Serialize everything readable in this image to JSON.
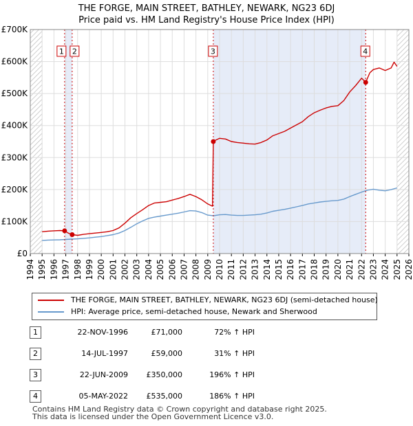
{
  "chart_data": {
    "type": "line",
    "title": "THE FORGE, MAIN STREET, BATHLEY, NEWARK, NG23 6DJ",
    "subtitle": "Price paid vs. HM Land Registry's House Price Index (HPI)",
    "xlim": [
      1994,
      2026
    ],
    "ylim": [
      0,
      700000
    ],
    "x_ticks": [
      "1994",
      "1995",
      "1996",
      "1997",
      "1998",
      "1999",
      "2000",
      "2001",
      "2002",
      "2003",
      "2004",
      "2005",
      "2006",
      "2007",
      "2008",
      "2009",
      "2010",
      "2011",
      "2012",
      "2013",
      "2014",
      "2015",
      "2016",
      "2017",
      "2018",
      "2019",
      "2020",
      "2021",
      "2022",
      "2023",
      "2024",
      "2025",
      "2026"
    ],
    "y_ticks": [
      {
        "value": 0,
        "label": "£0"
      },
      {
        "value": 100000,
        "label": "£100K"
      },
      {
        "value": 200000,
        "label": "£200K"
      },
      {
        "value": 300000,
        "label": "£300K"
      },
      {
        "value": 400000,
        "label": "£400K"
      },
      {
        "value": 500000,
        "label": "£500K"
      },
      {
        "value": 600000,
        "label": "£600K"
      },
      {
        "value": 700000,
        "label": "£700K"
      }
    ],
    "hatched_ranges": [
      [
        1994.0,
        1995.0
      ],
      [
        2025.0,
        2026.0
      ]
    ],
    "sold_ranges": [
      [
        1996.9,
        1997.55
      ],
      [
        2009.47,
        2022.35
      ]
    ],
    "series": [
      {
        "name": "THE FORGE, MAIN STREET, BATHLEY, NEWARK, NG23 6DJ (semi-detached house)",
        "color": "#cc0000",
        "points": [
          [
            1995.0,
            68000
          ],
          [
            1995.5,
            70000
          ],
          [
            1996.0,
            71000
          ],
          [
            1996.5,
            72000
          ],
          [
            1996.9,
            71000
          ],
          [
            1997.2,
            64000
          ],
          [
            1997.54,
            59000
          ],
          [
            1998.0,
            57000
          ],
          [
            1998.5,
            60000
          ],
          [
            1999.0,
            62000
          ],
          [
            1999.5,
            64000
          ],
          [
            2000.0,
            66000
          ],
          [
            2000.5,
            68000
          ],
          [
            2001.0,
            72000
          ],
          [
            2001.5,
            80000
          ],
          [
            2002.0,
            95000
          ],
          [
            2002.5,
            112000
          ],
          [
            2003.0,
            125000
          ],
          [
            2003.5,
            137000
          ],
          [
            2004.0,
            150000
          ],
          [
            2004.5,
            158000
          ],
          [
            2005.0,
            160000
          ],
          [
            2005.5,
            162000
          ],
          [
            2006.0,
            167000
          ],
          [
            2006.5,
            172000
          ],
          [
            2007.0,
            178000
          ],
          [
            2007.5,
            185000
          ],
          [
            2008.0,
            178000
          ],
          [
            2008.5,
            168000
          ],
          [
            2009.0,
            155000
          ],
          [
            2009.4,
            148000
          ],
          [
            2009.47,
            350000
          ],
          [
            2009.7,
            355000
          ],
          [
            2010.0,
            360000
          ],
          [
            2010.5,
            358000
          ],
          [
            2011.0,
            350000
          ],
          [
            2011.5,
            347000
          ],
          [
            2012.0,
            345000
          ],
          [
            2012.5,
            343000
          ],
          [
            2013.0,
            342000
          ],
          [
            2013.5,
            347000
          ],
          [
            2014.0,
            355000
          ],
          [
            2014.5,
            368000
          ],
          [
            2015.0,
            375000
          ],
          [
            2015.5,
            382000
          ],
          [
            2016.0,
            392000
          ],
          [
            2016.5,
            402000
          ],
          [
            2017.0,
            412000
          ],
          [
            2017.5,
            428000
          ],
          [
            2018.0,
            440000
          ],
          [
            2018.5,
            448000
          ],
          [
            2019.0,
            455000
          ],
          [
            2019.5,
            460000
          ],
          [
            2020.0,
            462000
          ],
          [
            2020.5,
            478000
          ],
          [
            2021.0,
            505000
          ],
          [
            2021.5,
            525000
          ],
          [
            2022.0,
            548000
          ],
          [
            2022.35,
            535000
          ],
          [
            2022.7,
            565000
          ],
          [
            2023.0,
            575000
          ],
          [
            2023.5,
            580000
          ],
          [
            2024.0,
            572000
          ],
          [
            2024.5,
            580000
          ],
          [
            2024.75,
            598000
          ],
          [
            2025.0,
            585000
          ]
        ]
      },
      {
        "name": "HPI: Average price, semi-detached house, Newark and Sherwood",
        "color": "#6699cc",
        "points": [
          [
            1995.0,
            41000
          ],
          [
            1995.5,
            42000
          ],
          [
            1996.0,
            42500
          ],
          [
            1996.5,
            43000
          ],
          [
            1997.0,
            44000
          ],
          [
            1997.5,
            45000
          ],
          [
            1998.0,
            46000
          ],
          [
            1998.5,
            47500
          ],
          [
            1999.0,
            49000
          ],
          [
            1999.5,
            51000
          ],
          [
            2000.0,
            53000
          ],
          [
            2000.5,
            56000
          ],
          [
            2001.0,
            59000
          ],
          [
            2001.5,
            64000
          ],
          [
            2002.0,
            72000
          ],
          [
            2002.5,
            82000
          ],
          [
            2003.0,
            93000
          ],
          [
            2003.5,
            102000
          ],
          [
            2004.0,
            110000
          ],
          [
            2004.5,
            114000
          ],
          [
            2005.0,
            117000
          ],
          [
            2005.5,
            120000
          ],
          [
            2006.0,
            123000
          ],
          [
            2006.5,
            126000
          ],
          [
            2007.0,
            130000
          ],
          [
            2007.5,
            134000
          ],
          [
            2008.0,
            133000
          ],
          [
            2008.5,
            128000
          ],
          [
            2009.0,
            120000
          ],
          [
            2009.5,
            118000
          ],
          [
            2010.0,
            121000
          ],
          [
            2010.5,
            122000
          ],
          [
            2011.0,
            120000
          ],
          [
            2011.5,
            119000
          ],
          [
            2012.0,
            119000
          ],
          [
            2012.5,
            120000
          ],
          [
            2013.0,
            121000
          ],
          [
            2013.5,
            123000
          ],
          [
            2014.0,
            127000
          ],
          [
            2014.5,
            132000
          ],
          [
            2015.0,
            135000
          ],
          [
            2015.5,
            138000
          ],
          [
            2016.0,
            142000
          ],
          [
            2016.5,
            146000
          ],
          [
            2017.0,
            150000
          ],
          [
            2017.5,
            155000
          ],
          [
            2018.0,
            158000
          ],
          [
            2018.5,
            161000
          ],
          [
            2019.0,
            163000
          ],
          [
            2019.5,
            165000
          ],
          [
            2020.0,
            166000
          ],
          [
            2020.5,
            170000
          ],
          [
            2021.0,
            178000
          ],
          [
            2021.5,
            185000
          ],
          [
            2022.0,
            192000
          ],
          [
            2022.5,
            198000
          ],
          [
            2023.0,
            201000
          ],
          [
            2023.5,
            198000
          ],
          [
            2024.0,
            196000
          ],
          [
            2024.5,
            200000
          ],
          [
            2025.0,
            205000
          ]
        ]
      }
    ],
    "sales": [
      {
        "num": "1",
        "x": 1996.9,
        "price": 71000
      },
      {
        "num": "2",
        "x": 1997.54,
        "price": 59000
      },
      {
        "num": "3",
        "x": 2009.47,
        "price": 350000
      },
      {
        "num": "4",
        "x": 2022.35,
        "price": 535000
      }
    ]
  },
  "legend": {
    "property_label": "THE FORGE, MAIN STREET, BATHLEY, NEWARK, NG23 6DJ (semi-detached house)",
    "hpi_label": "HPI: Average price, semi-detached house, Newark and Sherwood"
  },
  "sales_table": [
    {
      "num": "1",
      "date": "22-NOV-1996",
      "price": "£71,000",
      "hpi": "72% ↑ HPI"
    },
    {
      "num": "2",
      "date": "14-JUL-1997",
      "price": "£59,000",
      "hpi": "31% ↑ HPI"
    },
    {
      "num": "3",
      "date": "22-JUN-2009",
      "price": "£350,000",
      "hpi": "196% ↑ HPI"
    },
    {
      "num": "4",
      "date": "05-MAY-2022",
      "price": "£535,000",
      "hpi": "186% ↑ HPI"
    }
  ],
  "footer": {
    "line1": "Contains HM Land Registry data © Crown copyright and database right 2025.",
    "line2": "This data is licensed under the Open Government Licence v3.0."
  }
}
